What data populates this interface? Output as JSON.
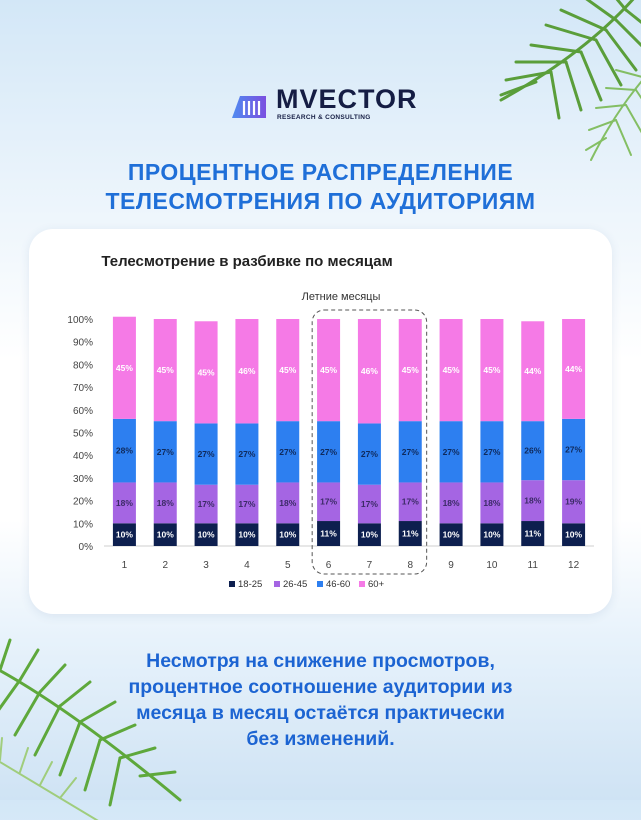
{
  "brand": {
    "name": "MVECTOR",
    "tagline": "RESEARCH & CONSULTING"
  },
  "headline": {
    "line1": "ПРОЦЕНТНОЕ РАСПРЕДЕЛЕНИЕ",
    "line2": "ТЕЛЕСМОТРЕНИЯ ПО АУДИТОРИЯМ"
  },
  "caption": {
    "line1": "Несмотря на снижение просмотров,",
    "line2": "процентное соотношение аудитории из",
    "line3": "месяца в месяц остаётся практически",
    "line4": "без изменений."
  },
  "chart_data": {
    "type": "bar",
    "stacked": true,
    "title": "Телесмотрение в разбивке по месяцам",
    "annotation": "Летние месяцы",
    "highlight_categories": [
      "6",
      "7",
      "8"
    ],
    "categories": [
      "1",
      "2",
      "3",
      "4",
      "5",
      "6",
      "7",
      "8",
      "9",
      "10",
      "11",
      "12"
    ],
    "ylim": [
      0,
      100
    ],
    "yticks": [
      "0%",
      "10%",
      "20%",
      "30%",
      "40%",
      "50%",
      "60%",
      "70%",
      "80%",
      "90%",
      "100%"
    ],
    "legend_position": "bottom",
    "series": [
      {
        "name": "18-25",
        "color": "#0d1f4f",
        "text_color": "#ffffff",
        "values": [
          10,
          10,
          10,
          10,
          10,
          11,
          10,
          11,
          10,
          10,
          11,
          10
        ]
      },
      {
        "name": "26-45",
        "color": "#a565e3",
        "text_color": "#3b2a66",
        "values": [
          18,
          18,
          17,
          17,
          18,
          17,
          17,
          17,
          18,
          18,
          18,
          19
        ]
      },
      {
        "name": "46-60",
        "color": "#2d7ff0",
        "text_color": "#0f2a5c",
        "values": [
          28,
          27,
          27,
          27,
          27,
          27,
          27,
          27,
          27,
          27,
          26,
          27
        ]
      },
      {
        "name": "60+",
        "color": "#f57ae6",
        "text_color": "#ffffff",
        "values": [
          45,
          45,
          45,
          46,
          45,
          45,
          46,
          45,
          45,
          45,
          44,
          44
        ]
      }
    ]
  }
}
